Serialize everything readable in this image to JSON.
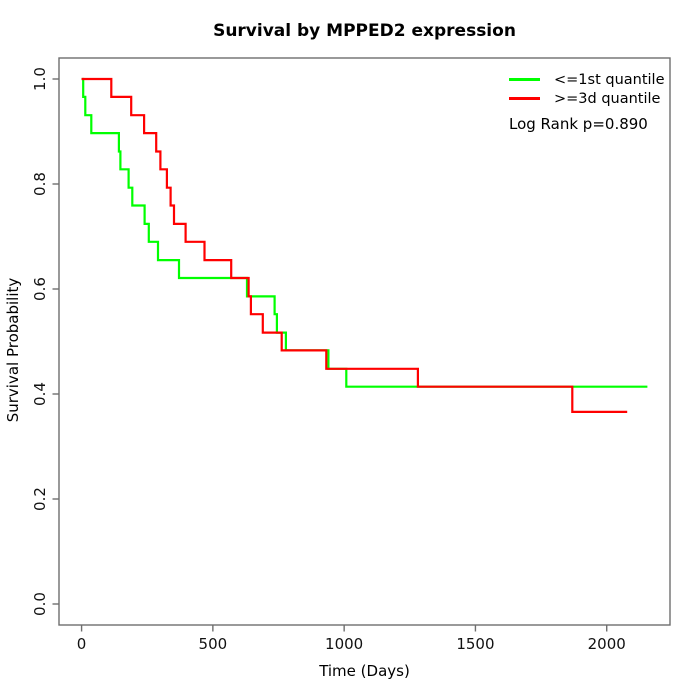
{
  "chart_data": {
    "type": "line",
    "subtype": "kaplan_meier_step",
    "title": "Survival by MPPED2 expression",
    "xlabel": "Time (Days)",
    "ylabel": "Survival Probability",
    "xlim": [
      -86,
      2241
    ],
    "ylim": [
      -0.04,
      1.04
    ],
    "x_ticks": [
      0,
      500,
      1000,
      1500,
      2000
    ],
    "y_ticks": [
      0.0,
      0.2,
      0.4,
      0.6,
      0.8,
      1.0
    ],
    "grid": false,
    "legend_position": "top-right",
    "annotation": "Log Rank p=0.890",
    "series": [
      {
        "name": "<=1st quantile",
        "color": "#00FF00",
        "step": "post",
        "points": [
          [
            0,
            1.0
          ],
          [
            6,
            0.966
          ],
          [
            14,
            0.931
          ],
          [
            37,
            0.897
          ],
          [
            142,
            0.862
          ],
          [
            148,
            0.828
          ],
          [
            179,
            0.793
          ],
          [
            193,
            0.759
          ],
          [
            240,
            0.724
          ],
          [
            256,
            0.69
          ],
          [
            291,
            0.655
          ],
          [
            371,
            0.621
          ],
          [
            630,
            0.586
          ],
          [
            735,
            0.552
          ],
          [
            744,
            0.517
          ],
          [
            778,
            0.483
          ],
          [
            940,
            0.448
          ],
          [
            1008,
            0.414
          ],
          [
            2155,
            0.414
          ]
        ]
      },
      {
        "name": ">=3d quantile",
        "color": "#FF0000",
        "step": "post",
        "points": [
          [
            0,
            1.0
          ],
          [
            113,
            0.966
          ],
          [
            189,
            0.931
          ],
          [
            238,
            0.897
          ],
          [
            284,
            0.862
          ],
          [
            300,
            0.828
          ],
          [
            325,
            0.793
          ],
          [
            339,
            0.759
          ],
          [
            352,
            0.724
          ],
          [
            396,
            0.69
          ],
          [
            468,
            0.655
          ],
          [
            570,
            0.621
          ],
          [
            636,
            0.586
          ],
          [
            645,
            0.552
          ],
          [
            690,
            0.517
          ],
          [
            762,
            0.483
          ],
          [
            932,
            0.448
          ],
          [
            1281,
            0.414
          ],
          [
            1869,
            0.366
          ],
          [
            2078,
            0.366
          ]
        ]
      }
    ]
  }
}
